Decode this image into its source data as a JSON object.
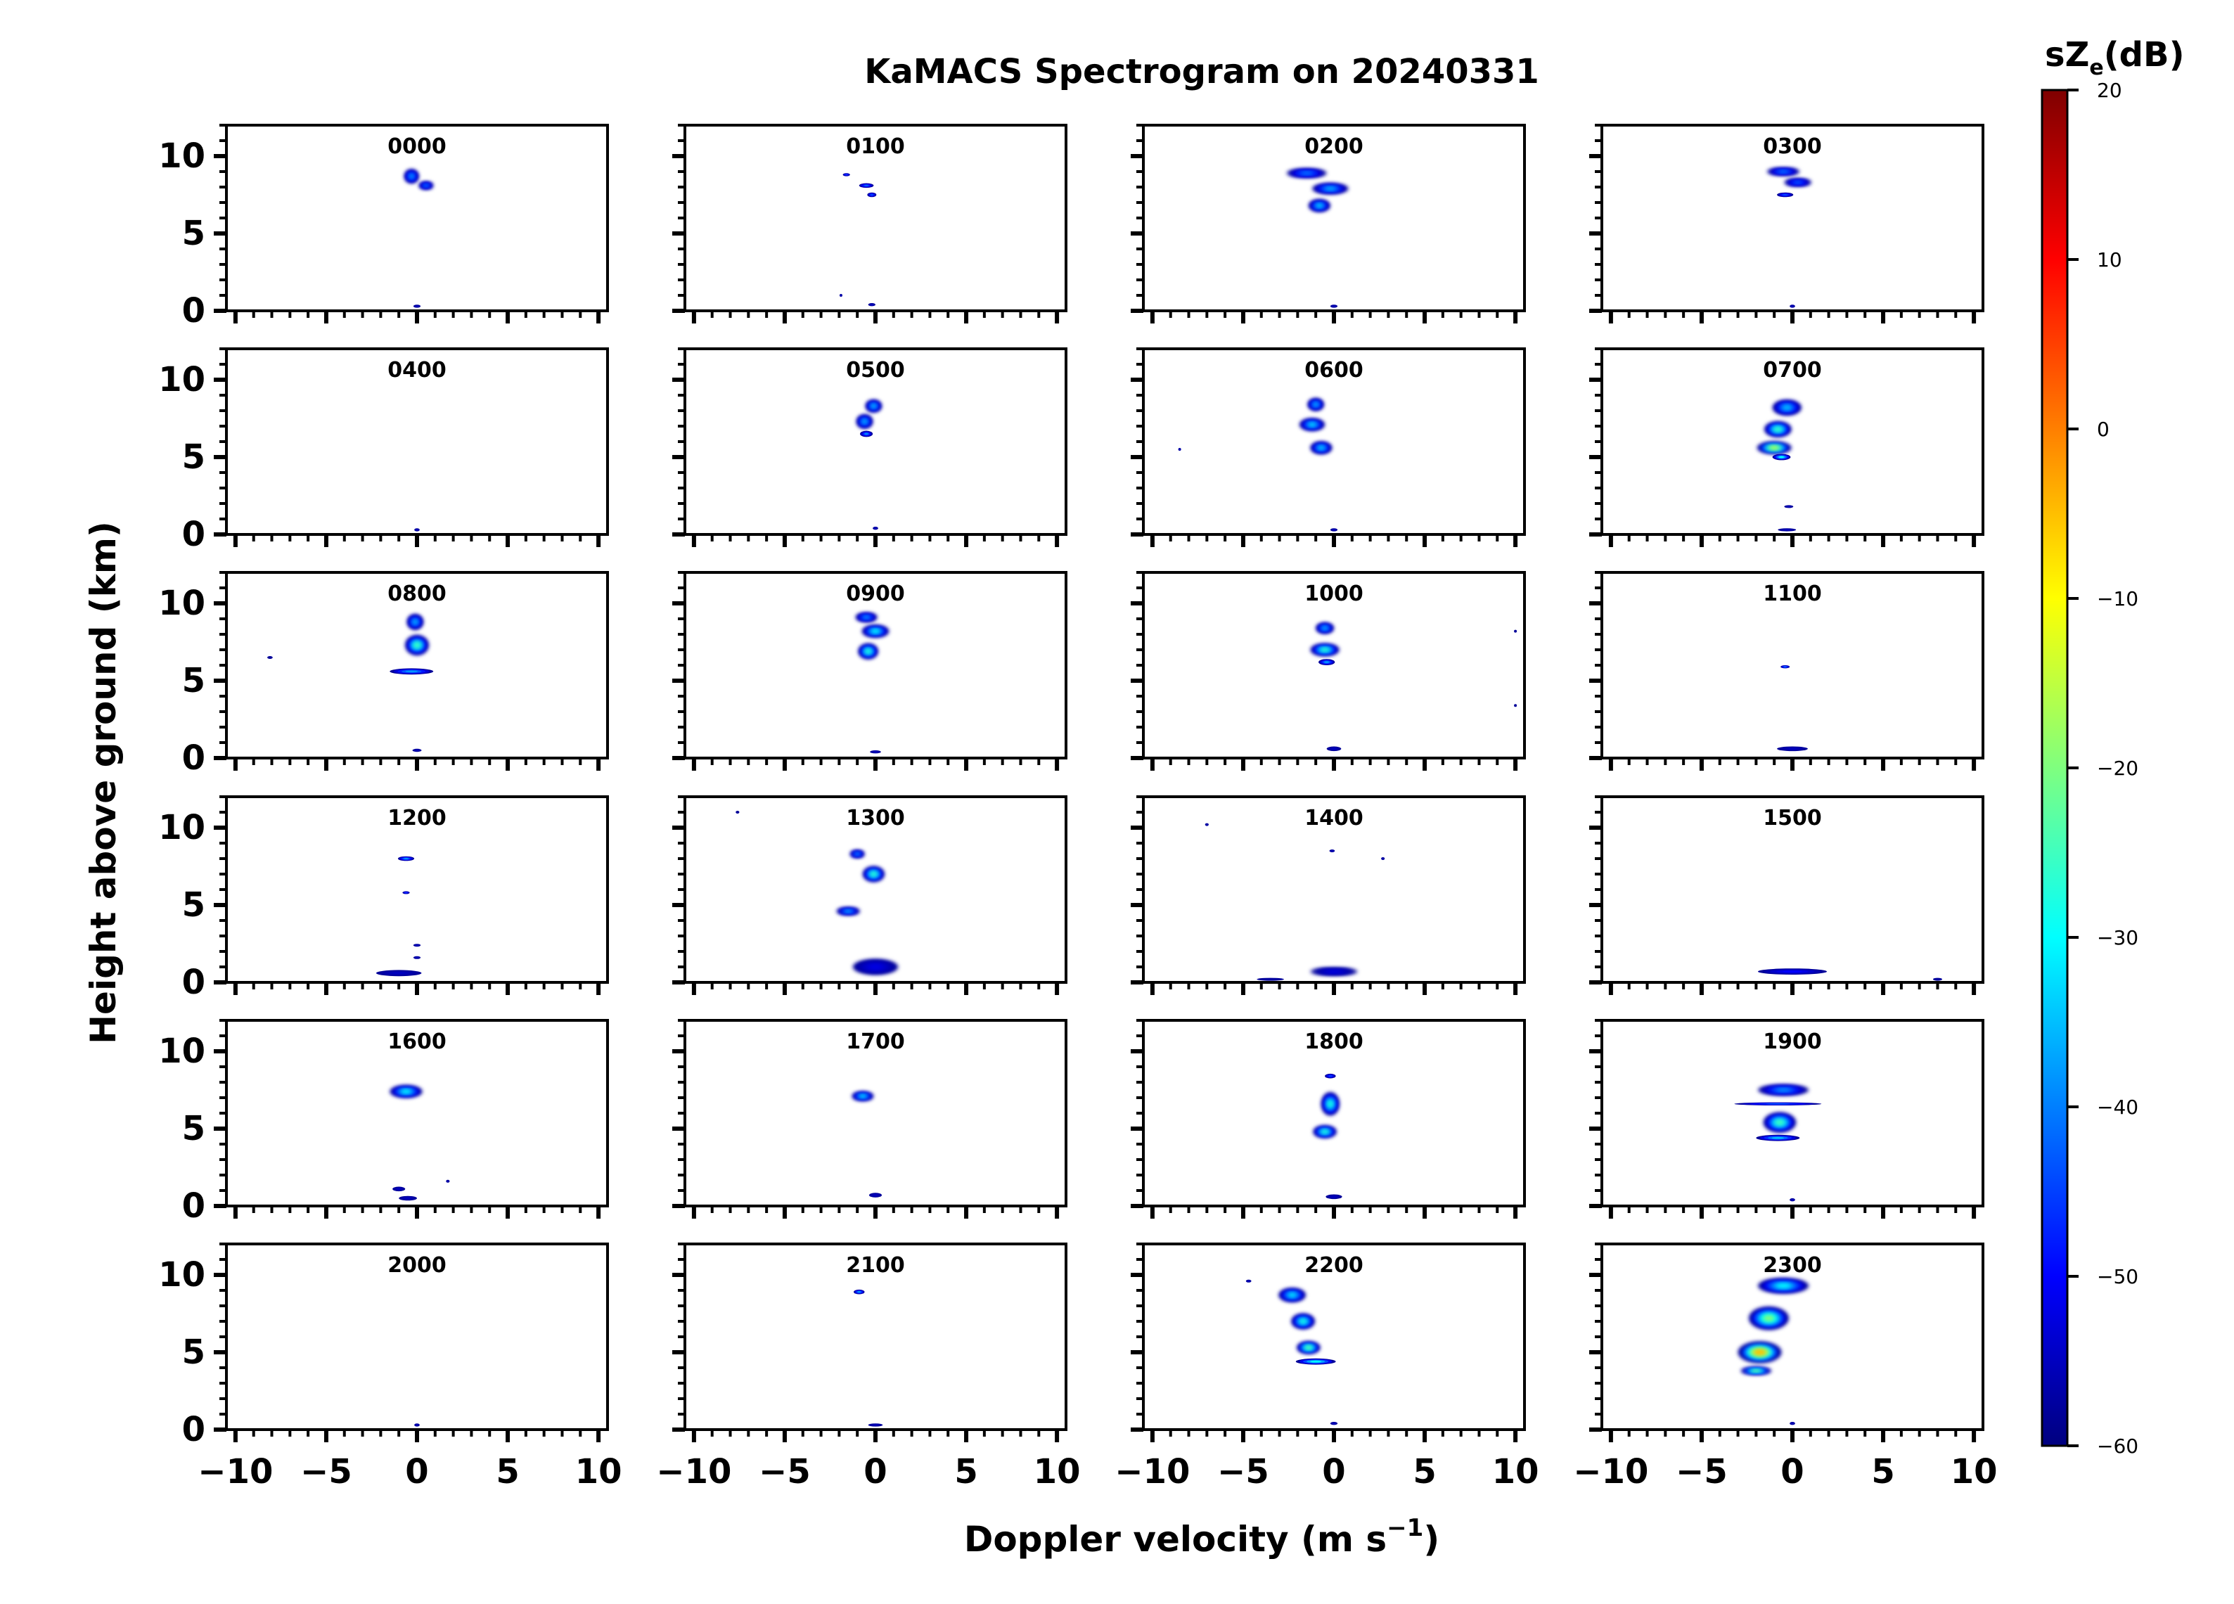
{
  "chart_data": {
    "type": "heatmap",
    "title": "KaMACS Spectrogram on 20240331",
    "xlabel": "Doppler velocity (m s",
    "xlabel_sup": "−1",
    "xlabel_tail": ")",
    "ylabel": "Height above ground (km)",
    "xlim": [
      -10.5,
      10.5
    ],
    "ylim": [
      0,
      12
    ],
    "xticks": [
      -10,
      -5,
      0,
      5,
      10
    ],
    "xtick_labels": [
      "−10",
      "−5",
      "0",
      "5",
      "10"
    ],
    "yticks": [
      0,
      5,
      10
    ],
    "ytick_labels": [
      "0",
      "5",
      "10"
    ],
    "colorbar": {
      "label_main": "sZ",
      "label_sub": "e",
      "label_tail": "(dB)",
      "min": -60,
      "max": 20,
      "ticks": [
        20,
        10,
        0,
        -10,
        -20,
        -30,
        -40,
        -50,
        -60
      ],
      "tick_labels": [
        "20",
        "10",
        "0",
        "−10",
        "−20",
        "−30",
        "−40",
        "−50",
        "−60"
      ],
      "colormap": "jet",
      "colors": [
        "#00007f",
        "#0000ff",
        "#007fff",
        "#00ffff",
        "#7fff7f",
        "#ffff00",
        "#ff7f00",
        "#ff0000",
        "#7f0000"
      ]
    },
    "panels": [
      {
        "label": "0000",
        "blobs": [
          {
            "v": -0.3,
            "h": 8.7,
            "w": 0.8,
            "hh": 0.9,
            "peak": -38
          },
          {
            "v": 0.5,
            "h": 8.1,
            "w": 0.8,
            "hh": 0.5,
            "peak": -40
          },
          {
            "v": 0,
            "h": 0.3,
            "w": 0.4,
            "hh": 0.2,
            "peak": -55
          }
        ]
      },
      {
        "label": "0100",
        "blobs": [
          {
            "v": -1.6,
            "h": 8.8,
            "w": 0.4,
            "hh": 0.2,
            "peak": -45
          },
          {
            "v": -0.5,
            "h": 8.1,
            "w": 0.8,
            "hh": 0.3,
            "peak": -42
          },
          {
            "v": -0.2,
            "h": 7.5,
            "w": 0.5,
            "hh": 0.3,
            "peak": -44
          },
          {
            "v": -1.9,
            "h": 1.0,
            "w": 0.1,
            "hh": 0.1,
            "peak": -55
          },
          {
            "v": -0.2,
            "h": 0.4,
            "w": 0.4,
            "hh": 0.2,
            "peak": -55
          }
        ]
      },
      {
        "label": "0200",
        "blobs": [
          {
            "v": -1.5,
            "h": 8.9,
            "w": 2.2,
            "hh": 0.6,
            "peak": -40
          },
          {
            "v": -0.2,
            "h": 7.9,
            "w": 2.0,
            "hh": 0.7,
            "peak": -36
          },
          {
            "v": -0.8,
            "h": 6.8,
            "w": 1.2,
            "hh": 0.8,
            "peak": -34
          },
          {
            "v": 0,
            "h": 0.3,
            "w": 0.4,
            "hh": 0.2,
            "peak": -55
          }
        ]
      },
      {
        "label": "0300",
        "blobs": [
          {
            "v": -0.5,
            "h": 9.0,
            "w": 1.8,
            "hh": 0.5,
            "peak": -40
          },
          {
            "v": 0.3,
            "h": 8.3,
            "w": 1.5,
            "hh": 0.5,
            "peak": -42
          },
          {
            "v": -0.4,
            "h": 7.5,
            "w": 0.9,
            "hh": 0.3,
            "peak": -44
          },
          {
            "v": 0,
            "h": 0.3,
            "w": 0.3,
            "hh": 0.2,
            "peak": -55
          }
        ]
      },
      {
        "label": "0400",
        "blobs": [
          {
            "v": 0,
            "h": 0.3,
            "w": 0.3,
            "hh": 0.2,
            "peak": -55
          }
        ]
      },
      {
        "label": "0500",
        "blobs": [
          {
            "v": -0.1,
            "h": 8.3,
            "w": 0.9,
            "hh": 0.8,
            "peak": -35
          },
          {
            "v": -0.6,
            "h": 7.3,
            "w": 0.9,
            "hh": 0.9,
            "peak": -36
          },
          {
            "v": -0.5,
            "h": 6.5,
            "w": 0.7,
            "hh": 0.4,
            "peak": -40
          },
          {
            "v": 0,
            "h": 0.4,
            "w": 0.3,
            "hh": 0.2,
            "peak": -55
          }
        ]
      },
      {
        "label": "0600",
        "blobs": [
          {
            "v": -1.0,
            "h": 8.4,
            "w": 0.9,
            "hh": 0.8,
            "peak": -36
          },
          {
            "v": -1.2,
            "h": 7.1,
            "w": 1.4,
            "hh": 0.8,
            "peak": -33
          },
          {
            "v": -0.7,
            "h": 5.6,
            "w": 1.2,
            "hh": 0.8,
            "peak": -34
          },
          {
            "v": -8.5,
            "h": 5.5,
            "w": 0.1,
            "hh": 0.1,
            "peak": -55
          },
          {
            "v": 0,
            "h": 0.3,
            "w": 0.4,
            "hh": 0.2,
            "peak": -55
          }
        ]
      },
      {
        "label": "0700",
        "blobs": [
          {
            "v": -0.3,
            "h": 8.2,
            "w": 1.6,
            "hh": 1.0,
            "peak": -35
          },
          {
            "v": -0.8,
            "h": 6.8,
            "w": 1.5,
            "hh": 1.0,
            "peak": -25
          },
          {
            "v": -1.0,
            "h": 5.6,
            "w": 1.9,
            "hh": 0.8,
            "peak": -15
          },
          {
            "v": -0.6,
            "h": 5.0,
            "w": 1.0,
            "hh": 0.4,
            "peak": -30
          },
          {
            "v": -0.2,
            "h": 1.8,
            "w": 0.5,
            "hh": 0.1,
            "peak": -55
          },
          {
            "v": -0.3,
            "h": 0.3,
            "w": 1.0,
            "hh": 0.2,
            "peak": -55
          }
        ]
      },
      {
        "label": "0800",
        "blobs": [
          {
            "v": -0.1,
            "h": 8.8,
            "w": 0.9,
            "hh": 1.0,
            "peak": -36
          },
          {
            "v": 0,
            "h": 7.3,
            "w": 1.3,
            "hh": 1.3,
            "peak": -25
          },
          {
            "v": -0.3,
            "h": 5.6,
            "w": 2.4,
            "hh": 0.4,
            "peak": -38
          },
          {
            "v": -8.1,
            "h": 6.5,
            "w": 0.3,
            "hh": 0.1,
            "peak": -58
          },
          {
            "v": 0,
            "h": 0.5,
            "w": 0.5,
            "hh": 0.2,
            "peak": -55
          }
        ]
      },
      {
        "label": "0900",
        "blobs": [
          {
            "v": -0.5,
            "h": 9.1,
            "w": 1.2,
            "hh": 0.6,
            "peak": -38
          },
          {
            "v": 0,
            "h": 8.2,
            "w": 1.5,
            "hh": 0.8,
            "peak": -30
          },
          {
            "v": -0.4,
            "h": 6.9,
            "w": 1.1,
            "hh": 1.0,
            "peak": -27
          },
          {
            "v": 0,
            "h": 0.4,
            "w": 0.6,
            "hh": 0.2,
            "peak": -55
          }
        ]
      },
      {
        "label": "1000",
        "blobs": [
          {
            "v": -0.5,
            "h": 8.4,
            "w": 1.0,
            "hh": 0.7,
            "peak": -36
          },
          {
            "v": -0.5,
            "h": 7.0,
            "w": 1.6,
            "hh": 0.8,
            "peak": -26
          },
          {
            "v": -0.4,
            "h": 6.2,
            "w": 0.9,
            "hh": 0.4,
            "peak": -38
          },
          {
            "v": 10.0,
            "h": 8.2,
            "w": 0.1,
            "hh": 0.1,
            "peak": -58
          },
          {
            "v": 10.0,
            "h": 3.4,
            "w": 0.1,
            "hh": 0.1,
            "peak": -58
          },
          {
            "v": 0,
            "h": 0.6,
            "w": 0.8,
            "hh": 0.3,
            "peak": -55
          }
        ]
      },
      {
        "label": "1100",
        "blobs": [
          {
            "v": -0.4,
            "h": 5.9,
            "w": 0.5,
            "hh": 0.2,
            "peak": -40
          },
          {
            "v": 0,
            "h": 0.6,
            "w": 1.7,
            "hh": 0.3,
            "peak": -55
          }
        ]
      },
      {
        "label": "1200",
        "blobs": [
          {
            "v": -0.6,
            "h": 8.0,
            "w": 0.9,
            "hh": 0.3,
            "peak": -38
          },
          {
            "v": -0.6,
            "h": 5.8,
            "w": 0.4,
            "hh": 0.1,
            "peak": -45
          },
          {
            "v": 0,
            "h": 2.4,
            "w": 0.4,
            "hh": 0.1,
            "peak": -55
          },
          {
            "v": 0,
            "h": 1.6,
            "w": 0.4,
            "hh": 0.1,
            "peak": -55
          },
          {
            "v": -1.0,
            "h": 0.6,
            "w": 2.5,
            "hh": 0.4,
            "peak": -55
          }
        ]
      },
      {
        "label": "1300",
        "blobs": [
          {
            "v": -1.0,
            "h": 8.3,
            "w": 0.8,
            "hh": 0.5,
            "peak": -38
          },
          {
            "v": -0.1,
            "h": 7.0,
            "w": 1.2,
            "hh": 1.0,
            "peak": -26
          },
          {
            "v": -1.5,
            "h": 4.6,
            "w": 1.3,
            "hh": 0.5,
            "peak": -36
          },
          {
            "v": -7.6,
            "h": 11.0,
            "w": 0.2,
            "hh": 0.1,
            "peak": -58
          },
          {
            "v": 0,
            "h": 1.0,
            "w": 2.5,
            "hh": 1.0,
            "peak": -52
          }
        ]
      },
      {
        "label": "1400",
        "blobs": [
          {
            "v": 0,
            "h": 0.7,
            "w": 2.6,
            "hh": 0.5,
            "peak": -52
          },
          {
            "v": -3.5,
            "h": 0.2,
            "w": 1.5,
            "hh": 0.1,
            "peak": -57
          },
          {
            "v": -7.0,
            "h": 10.2,
            "w": 0.2,
            "hh": 0.1,
            "peak": -56
          },
          {
            "v": -0.1,
            "h": 8.5,
            "w": 0.3,
            "hh": 0.1,
            "peak": -55
          },
          {
            "v": 2.7,
            "h": 8.0,
            "w": 0.2,
            "hh": 0.1,
            "peak": -56
          }
        ]
      },
      {
        "label": "1500",
        "blobs": [
          {
            "v": 0,
            "h": 0.7,
            "w": 3.8,
            "hh": 0.4,
            "peak": -50
          },
          {
            "v": 8.0,
            "h": 0.2,
            "w": 0.5,
            "hh": 0.1,
            "peak": -57
          }
        ]
      },
      {
        "label": "1600",
        "blobs": [
          {
            "v": -0.6,
            "h": 7.4,
            "w": 1.8,
            "hh": 0.8,
            "peak": -30
          },
          {
            "v": -1.0,
            "h": 1.1,
            "w": 0.7,
            "hh": 0.3,
            "peak": -55
          },
          {
            "v": -0.5,
            "h": 0.5,
            "w": 1.0,
            "hh": 0.3,
            "peak": -55
          },
          {
            "v": 1.7,
            "h": 1.6,
            "w": 0.2,
            "hh": 0.1,
            "peak": -56
          }
        ]
      },
      {
        "label": "1700",
        "blobs": [
          {
            "v": -0.7,
            "h": 7.1,
            "w": 1.2,
            "hh": 0.6,
            "peak": -32
          },
          {
            "v": 0,
            "h": 0.7,
            "w": 0.7,
            "hh": 0.3,
            "peak": -55
          }
        ]
      },
      {
        "label": "1800",
        "blobs": [
          {
            "v": -0.2,
            "h": 8.4,
            "w": 0.6,
            "hh": 0.3,
            "peak": -45
          },
          {
            "v": -0.2,
            "h": 6.6,
            "w": 1.0,
            "hh": 1.5,
            "peak": -28
          },
          {
            "v": -0.5,
            "h": 4.8,
            "w": 1.3,
            "hh": 0.8,
            "peak": -27
          },
          {
            "v": 0,
            "h": 0.6,
            "w": 0.9,
            "hh": 0.3,
            "peak": -55
          }
        ]
      },
      {
        "label": "1900",
        "blobs": [
          {
            "v": -0.5,
            "h": 7.5,
            "w": 2.8,
            "hh": 0.7,
            "peak": -38
          },
          {
            "v": -0.8,
            "h": 6.6,
            "w": 4.8,
            "hh": 0.2,
            "peak": -42
          },
          {
            "v": -0.7,
            "h": 5.4,
            "w": 1.8,
            "hh": 1.3,
            "peak": -25
          },
          {
            "v": -0.8,
            "h": 4.4,
            "w": 2.4,
            "hh": 0.4,
            "peak": -35
          },
          {
            "v": 0,
            "h": 0.4,
            "w": 0.3,
            "hh": 0.2,
            "peak": -55
          }
        ]
      },
      {
        "label": "2000",
        "blobs": [
          {
            "v": 0,
            "h": 0.3,
            "w": 0.3,
            "hh": 0.2,
            "peak": -55
          }
        ]
      },
      {
        "label": "2100",
        "blobs": [
          {
            "v": -0.9,
            "h": 8.9,
            "w": 0.6,
            "hh": 0.3,
            "peak": -38
          },
          {
            "v": 0,
            "h": 0.3,
            "w": 0.8,
            "hh": 0.2,
            "peak": -55
          }
        ]
      },
      {
        "label": "2200",
        "blobs": [
          {
            "v": -2.3,
            "h": 8.7,
            "w": 1.5,
            "hh": 0.9,
            "peak": -32
          },
          {
            "v": -1.7,
            "h": 7.0,
            "w": 1.3,
            "hh": 1.0,
            "peak": -28
          },
          {
            "v": -1.4,
            "h": 5.3,
            "w": 1.3,
            "hh": 0.8,
            "peak": -22
          },
          {
            "v": -1.0,
            "h": 4.4,
            "w": 2.2,
            "hh": 0.4,
            "peak": -30
          },
          {
            "v": -4.7,
            "h": 9.6,
            "w": 0.3,
            "hh": 0.1,
            "peak": -55
          },
          {
            "v": 0,
            "h": 0.4,
            "w": 0.4,
            "hh": 0.2,
            "peak": -55
          }
        ]
      },
      {
        "label": "2300",
        "blobs": [
          {
            "v": -0.5,
            "h": 9.3,
            "w": 2.8,
            "hh": 1.0,
            "peak": -30
          },
          {
            "v": -1.3,
            "h": 7.2,
            "w": 2.2,
            "hh": 1.5,
            "peak": -20
          },
          {
            "v": -1.8,
            "h": 5.0,
            "w": 2.4,
            "hh": 1.4,
            "peak": -5
          },
          {
            "v": -2.0,
            "h": 3.8,
            "w": 1.7,
            "hh": 0.5,
            "peak": -20
          },
          {
            "v": 0,
            "h": 0.4,
            "w": 0.3,
            "hh": 0.2,
            "peak": -55
          }
        ]
      }
    ]
  }
}
